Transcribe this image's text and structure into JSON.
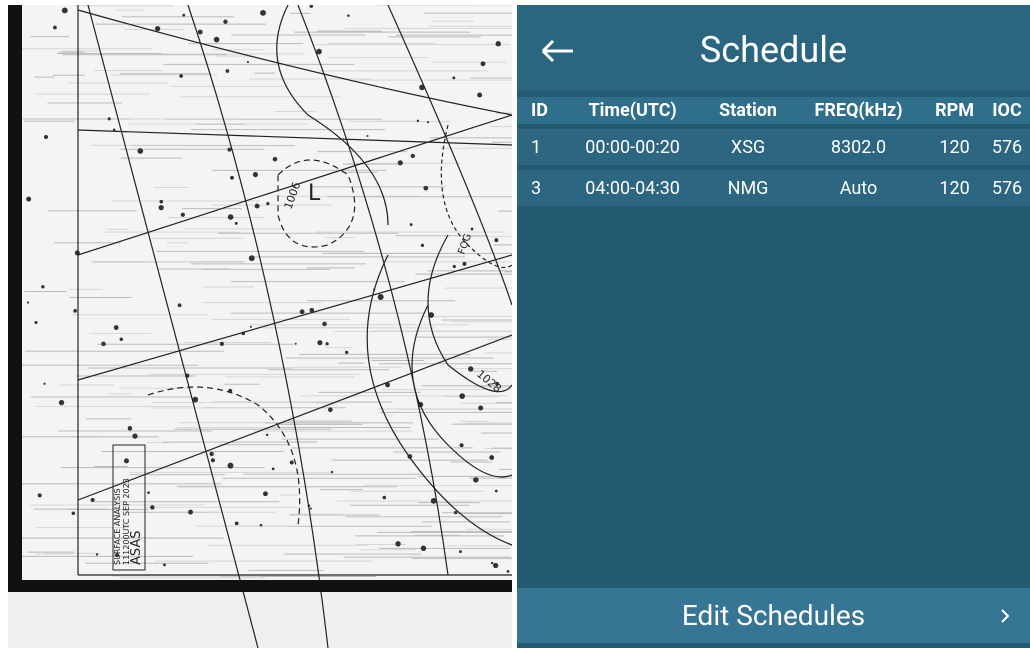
{
  "map": {
    "low_label": "L",
    "isobar_1": "1006",
    "isobar_2": "1028",
    "fog": "FOG",
    "stamp_1": "ASAS",
    "stamp_2": "111200UTC SEP 2023",
    "stamp_3": "SURFACE ANALYSIS"
  },
  "header": {
    "title": "Schedule"
  },
  "table": {
    "columns": [
      "ID",
      "Time(UTC)",
      "Station",
      "FREQ(kHz)",
      "RPM",
      "IOC"
    ],
    "rows": [
      [
        "1",
        "00:00-00:20",
        "XSG",
        "8302.0",
        "120",
        "576"
      ],
      [
        "3",
        "04:00-04:30",
        "NMG",
        "Auto",
        "120",
        "576"
      ]
    ]
  },
  "button": {
    "label": "Edit Schedules"
  }
}
